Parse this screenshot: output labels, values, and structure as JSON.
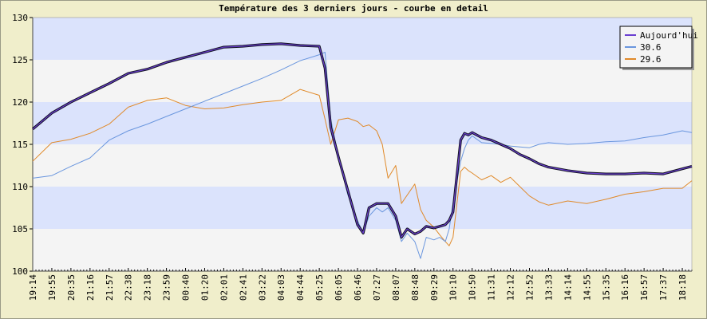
{
  "chart_data": {
    "type": "line",
    "title": "Température des 3 derniers jours - courbe en detail",
    "xlabel": "",
    "ylabel": "",
    "ylim": [
      100,
      130
    ],
    "y_ticks": [
      100,
      105,
      110,
      115,
      120,
      125,
      130
    ],
    "x_tick_labels": [
      "19:14",
      "19:55",
      "20:35",
      "21:16",
      "21:57",
      "22:38",
      "23:18",
      "23:59",
      "00:40",
      "01:20",
      "02:01",
      "02:41",
      "03:22",
      "04:03",
      "04:44",
      "05:25",
      "06:05",
      "06:46",
      "07:27",
      "08:07",
      "08:48",
      "09:29",
      "10:10",
      "10:50",
      "11:31",
      "12:12",
      "12:52",
      "13:33",
      "14:14",
      "14:55",
      "15:35",
      "16:16",
      "16:57",
      "17:37",
      "18:18"
    ],
    "grid": true,
    "legend_position": "top-right",
    "x": [
      0,
      1,
      2,
      3,
      4,
      5,
      6,
      7,
      8,
      9,
      10,
      11,
      12,
      13,
      14,
      15,
      15.3,
      15.6,
      16,
      16.5,
      17,
      17.3,
      17.6,
      18,
      18.3,
      18.6,
      19,
      19.3,
      19.6,
      20,
      20.3,
      20.6,
      21,
      21.3,
      21.6,
      21.8,
      22,
      22.4,
      22.6,
      22.8,
      23,
      23.5,
      24,
      24.5,
      25,
      25.5,
      26,
      26.5,
      27,
      28,
      29,
      30,
      31,
      32,
      33,
      34,
      34.5
    ],
    "series": [
      {
        "name": "Aujourd'hui",
        "color": "#6a3fd0",
        "values": [
          116.8,
          118.7,
          120,
          121.1,
          122.2,
          123.4,
          123.9,
          124.7,
          125.3,
          125.9,
          126.5,
          126.6,
          126.8,
          126.9,
          126.7,
          126.6,
          124,
          117,
          113.5,
          109.5,
          105.5,
          104.5,
          107.5,
          108,
          108,
          108,
          106.5,
          104,
          105,
          104.4,
          104.7,
          105.3,
          105.1,
          105.3,
          105.5,
          106,
          107,
          115.5,
          116.3,
          116.1,
          116.4,
          115.8,
          115.5,
          115,
          114.5,
          113.8,
          113.3,
          112.7,
          112.3,
          111.9,
          111.6,
          111.5,
          111.5,
          111.6,
          111.5,
          112.1,
          112.4
        ]
      },
      {
        "name": "30.6",
        "color": "#6a96de",
        "values": [
          111,
          111.3,
          112.4,
          113.4,
          115.5,
          116.6,
          117.4,
          118.3,
          119.2,
          120.1,
          121,
          121.9,
          122.8,
          123.8,
          124.9,
          125.6,
          125.9,
          118,
          113.5,
          109,
          106,
          104.5,
          106.5,
          107.5,
          107,
          107.5,
          106,
          103.5,
          104.5,
          103.5,
          101.5,
          104,
          103.7,
          104,
          103.5,
          105,
          108,
          113,
          114.5,
          115.5,
          116,
          115.2,
          115.1,
          115,
          114.8,
          114.7,
          114.6,
          115,
          115.2,
          115,
          115.1,
          115.3,
          115.4,
          115.8,
          116.1,
          116.6,
          116.4
        ]
      },
      {
        "name": "29.6",
        "color": "#e08a2a",
        "values": [
          113,
          115.2,
          115.6,
          116.3,
          117.4,
          119.4,
          120.2,
          120.5,
          119.6,
          119.2,
          119.3,
          119.7,
          120,
          120.2,
          121.5,
          120.8,
          118,
          115,
          117.9,
          118.1,
          117.7,
          117.1,
          117.3,
          116.6,
          115,
          111,
          112.5,
          108,
          109,
          110.3,
          107.3,
          106,
          105.2,
          104.3,
          103.5,
          103,
          104,
          111.8,
          112.3,
          111.9,
          111.6,
          110.8,
          111.3,
          110.5,
          111.1,
          110,
          108.9,
          108.2,
          107.8,
          108.3,
          108,
          108.5,
          109.1,
          109.4,
          109.8,
          109.8,
          110.7
        ]
      }
    ]
  }
}
